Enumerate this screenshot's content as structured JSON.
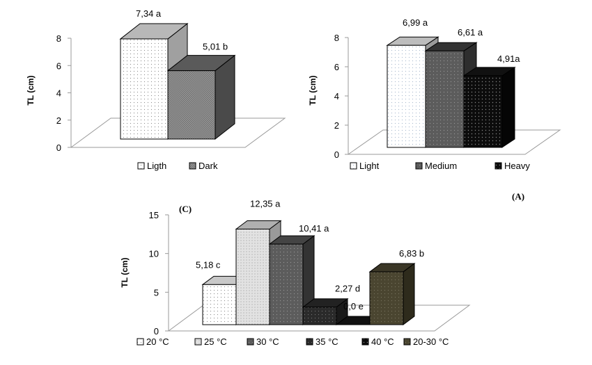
{
  "panels": {
    "A": {
      "tag": "(A)"
    },
    "C": {
      "tag": "(C)"
    }
  },
  "chart_data": [
    {
      "id": "chart-1",
      "type": "bar",
      "style": "3d-column",
      "title": "",
      "xlabel": "",
      "ylabel": "TL (cm)",
      "ylim": [
        0,
        8
      ],
      "yticks": [
        0,
        2,
        4,
        6,
        8
      ],
      "categories": [
        "Ligth",
        "Dark"
      ],
      "values": [
        7.34,
        5.01
      ],
      "data_labels": [
        "7,34 a",
        "5,01 b"
      ],
      "legend": [
        "Ligth",
        "Dark"
      ],
      "legend_position": "bottom",
      "colors": [
        "#f4f4f4",
        "#6a6a6a"
      ]
    },
    {
      "id": "chart-2",
      "type": "bar",
      "style": "3d-column",
      "title": "",
      "xlabel": "",
      "ylabel": "TL (cm)",
      "ylim": [
        0,
        8
      ],
      "yticks": [
        0,
        2,
        4,
        6,
        8
      ],
      "categories": [
        "Light",
        "Medium",
        "Heavy"
      ],
      "values": [
        6.99,
        6.61,
        4.91
      ],
      "data_labels": [
        "6,99 a",
        "6,61 a",
        "4,91a"
      ],
      "legend": [
        "Light",
        "Medium",
        "Heavy"
      ],
      "legend_position": "bottom",
      "panel_tag": "(A)",
      "colors": [
        "#f4f6fa",
        "#4a4a4a",
        "#121212"
      ]
    },
    {
      "id": "chart-3",
      "type": "bar",
      "style": "3d-column",
      "title": "",
      "xlabel": "",
      "ylabel": "TL (cm)",
      "ylim": [
        0,
        15
      ],
      "yticks": [
        0,
        5,
        10,
        15
      ],
      "categories": [
        "20 °C",
        "25 °C",
        "30 °C",
        "35 °C",
        "40 °C",
        "20-30 °C"
      ],
      "values": [
        5.18,
        12.35,
        10.41,
        2.27,
        0.0,
        6.83
      ],
      "data_labels": [
        "5,18 c",
        "12,35 a",
        "10,41 a",
        "2,27 d",
        "0,0 e",
        "6,83 b"
      ],
      "legend": [
        "20 °C",
        "25 °C",
        "30 °C",
        "35 °C",
        "40 °C",
        "20-30 °C"
      ],
      "legend_position": "bottom",
      "panel_tag": "(C)",
      "colors": [
        "#f8f8f8",
        "#d8d8d8",
        "#5a5a5a",
        "#262626",
        "#0a0a0a",
        "#4a4530"
      ]
    }
  ]
}
